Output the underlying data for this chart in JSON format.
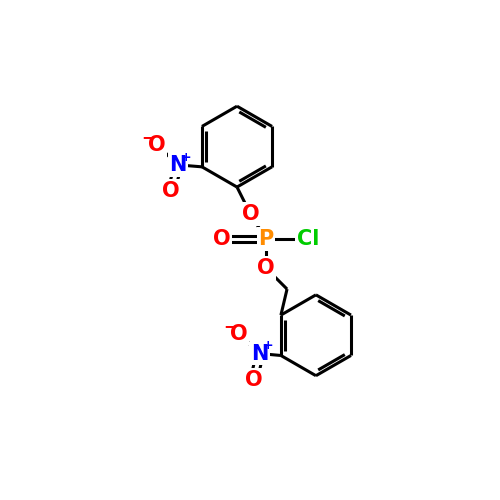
{
  "bg_color": "#ffffff",
  "atom_colors": {
    "C": "#000000",
    "O": "#ff0000",
    "N": "#0000ff",
    "P": "#ff8c00",
    "Cl": "#00cc00"
  },
  "bond_color": "#000000",
  "bond_width": 2.2,
  "figsize": [
    5.0,
    5.0
  ],
  "dpi": 100,
  "font_size_atom": 15,
  "font_size_charge": 9
}
